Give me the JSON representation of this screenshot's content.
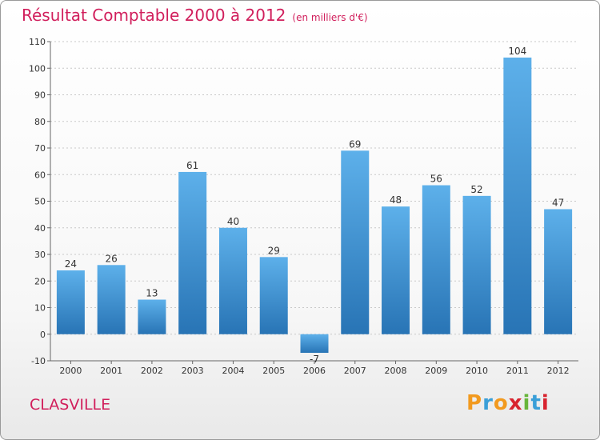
{
  "title": "Résultat Comptable 2000 à 2012",
  "subtitle": "(en milliers d'€)",
  "town": "CLASVILLE",
  "brand": {
    "text": "Proxiti",
    "letters": [
      "P",
      "r",
      "o",
      "x",
      "i",
      "t",
      "i"
    ],
    "colors": [
      "#f29a1f",
      "#3a9fd8",
      "#f29a1f",
      "#d8242f",
      "#67b53a",
      "#3a9fd8",
      "#d8242f"
    ]
  },
  "colors": {
    "title": "#d11f5c",
    "bar_light": "#5aaee9",
    "bar_dark": "#2a78b8",
    "axis": "#666666",
    "grid": "#c8c8c8"
  },
  "chart_data": {
    "type": "bar",
    "title": "Résultat Comptable 2000 à 2012",
    "subtitle": "(en milliers d'€)",
    "xlabel": "",
    "ylabel": "",
    "categories": [
      "2000",
      "2001",
      "2002",
      "2003",
      "2004",
      "2005",
      "2006",
      "2007",
      "2008",
      "2009",
      "2010",
      "2011",
      "2012"
    ],
    "values": [
      24,
      26,
      13,
      61,
      40,
      29,
      -7,
      69,
      48,
      56,
      52,
      104,
      47
    ],
    "ylim": [
      -10,
      110
    ],
    "yticks": [
      -10,
      0,
      10,
      20,
      30,
      40,
      50,
      60,
      70,
      80,
      90,
      100,
      110
    ],
    "grid": true
  }
}
